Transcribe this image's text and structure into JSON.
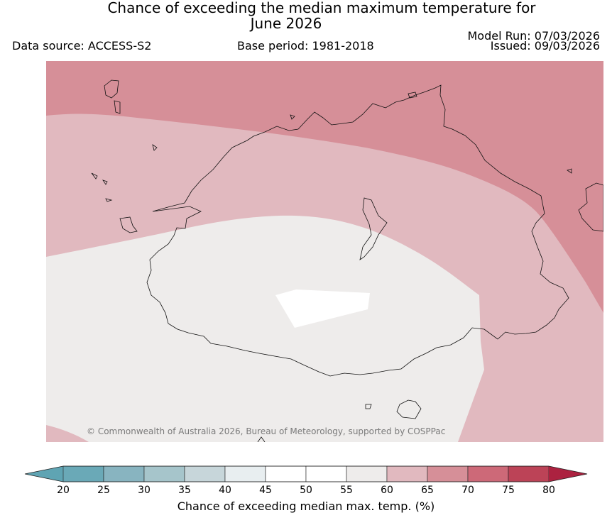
{
  "header": {
    "title_line1": "Chance of exceeding the median maximum temperature for",
    "title_line2": "June 2026",
    "data_source": "Data source: ACCESS-S2",
    "base_period": "Base period: 1981-2018",
    "model_run": "Model Run: 07/03/2026",
    "issued": "Issued: 09/03/2026"
  },
  "map": {
    "copyright": "© Commonwealth of Australia 2026, Bureau of Meteorology, supported by COSPPac",
    "zones": [
      {
        "name": "65-70 %",
        "color": "#d68f98"
      },
      {
        "name": "60-65 %",
        "color": "#e1b9bf"
      },
      {
        "name": "55-60 %",
        "color": "#eeeceb"
      },
      {
        "name": "45-55 %",
        "color": "#ffffff"
      }
    ]
  },
  "colorbar": {
    "title": "Chance of exceeding median max. temp. (%)",
    "ticks": [
      "20",
      "25",
      "30",
      "35",
      "40",
      "45",
      "50",
      "55",
      "60",
      "65",
      "70",
      "75",
      "80"
    ],
    "under_color": "#5fa4b3",
    "over_color": "#ac2240",
    "colors": [
      "#6aa9b7",
      "#88b4c0",
      "#a6c5cb",
      "#c7d6da",
      "#e8eef0",
      "#ffffff",
      "#ffffff",
      "#eeeceb",
      "#e1b9bf",
      "#d68f98",
      "#cd6978",
      "#bc4357"
    ]
  }
}
